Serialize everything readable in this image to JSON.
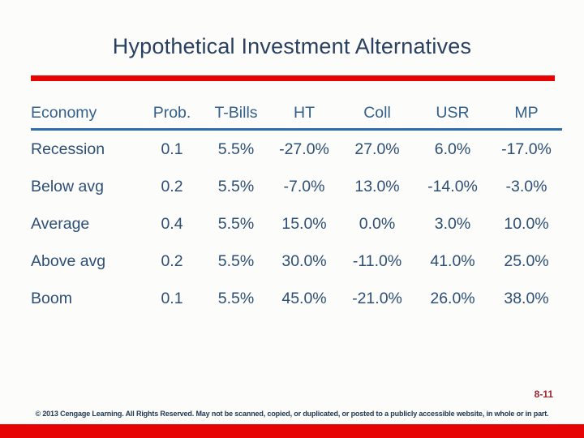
{
  "title": "Hypothetical Investment Alternatives",
  "chart_data": {
    "type": "table",
    "title": "Hypothetical Investment Alternatives",
    "columns": [
      "Economy",
      "Prob.",
      "T-Bills",
      "HT",
      "Coll",
      "USR",
      "MP"
    ],
    "rows": [
      {
        "economy": "Recession",
        "label_style": "negative",
        "values": [
          "0.1",
          "5.5%",
          "-27.0%",
          "27.0%",
          "6.0%",
          "-17.0%"
        ]
      },
      {
        "economy": "Below avg",
        "label_style": "negative",
        "values": [
          "0.2",
          "5.5%",
          "-7.0%",
          "13.0%",
          "-14.0%",
          "-3.0%"
        ]
      },
      {
        "economy": "Average",
        "label_style": "neutral",
        "values": [
          "0.4",
          "5.5%",
          "15.0%",
          "0.0%",
          "3.0%",
          "10.0%"
        ]
      },
      {
        "economy": "Above avg",
        "label_style": "positive",
        "values": [
          "0.2",
          "5.5%",
          "30.0%",
          "-11.0%",
          "41.0%",
          "25.0%"
        ]
      },
      {
        "economy": "Boom",
        "label_style": "positive",
        "values": [
          "0.1",
          "5.5%",
          "45.0%",
          "-21.0%",
          "26.0%",
          "38.0%"
        ]
      }
    ]
  },
  "footer": {
    "page_number": "8-11",
    "copyright": "© 2013 Cengage Learning. All Rights Reserved. May not be scanned, copied, or duplicated, or posted to a publicly accessible website, in whole or in part."
  },
  "colors": {
    "title_color": "#29405F",
    "accent_red": "#E60404",
    "header_text": "#33608C",
    "data_text": "#2E4F75",
    "header_rule": "#2E6DAD",
    "negative_label": "#A81E26",
    "positive_label": "#1EA26B",
    "neutral_label": "#2E4F75",
    "page_number_color": "#9E2533",
    "copyright_color": "#203850"
  }
}
